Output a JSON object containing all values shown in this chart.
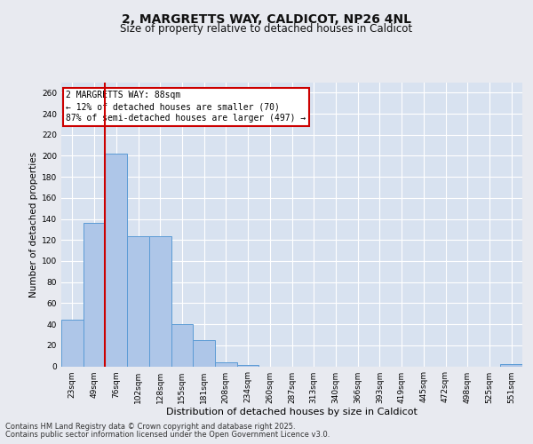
{
  "title_line1": "2, MARGRETTS WAY, CALDICOT, NP26 4NL",
  "title_line2": "Size of property relative to detached houses in Caldicot",
  "xlabel": "Distribution of detached houses by size in Caldicot",
  "ylabel": "Number of detached properties",
  "categories": [
    "23sqm",
    "49sqm",
    "76sqm",
    "102sqm",
    "128sqm",
    "155sqm",
    "181sqm",
    "208sqm",
    "234sqm",
    "260sqm",
    "287sqm",
    "313sqm",
    "340sqm",
    "366sqm",
    "393sqm",
    "419sqm",
    "445sqm",
    "472sqm",
    "498sqm",
    "525sqm",
    "551sqm"
  ],
  "values": [
    44,
    136,
    202,
    124,
    124,
    40,
    25,
    4,
    1,
    0,
    0,
    0,
    0,
    0,
    0,
    0,
    0,
    0,
    0,
    0,
    2
  ],
  "bar_color": "#aec6e8",
  "bar_edge_color": "#5b9bd5",
  "vline_x": 1.5,
  "vline_color": "#cc0000",
  "annotation_text": "2 MARGRETTS WAY: 88sqm\n← 12% of detached houses are smaller (70)\n87% of semi-detached houses are larger (497) →",
  "annotation_fontsize": 7.0,
  "ylim": [
    0,
    270
  ],
  "yticks": [
    0,
    20,
    40,
    60,
    80,
    100,
    120,
    140,
    160,
    180,
    200,
    220,
    240,
    260
  ],
  "background_color": "#e8eaf0",
  "plot_bg_color": "#d8e2f0",
  "grid_color": "#ffffff",
  "footer_line1": "Contains HM Land Registry data © Crown copyright and database right 2025.",
  "footer_line2": "Contains public sector information licensed under the Open Government Licence v3.0.",
  "footer_fontsize": 6.0,
  "title1_fontsize": 10,
  "title2_fontsize": 8.5,
  "ylabel_fontsize": 7.5,
  "xlabel_fontsize": 8.0,
  "tick_fontsize": 6.5
}
